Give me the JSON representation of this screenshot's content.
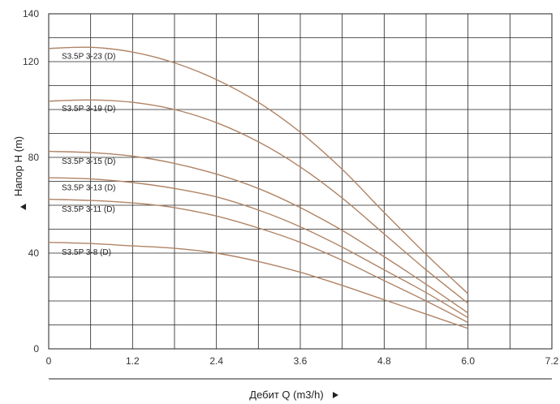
{
  "chart_data": {
    "type": "line",
    "title": "",
    "xlabel": "Дебит Q (m3/h)",
    "ylabel": "Напор H (m)",
    "xlim": [
      0,
      7.2
    ],
    "ylim": [
      0,
      140
    ],
    "x_ticks": [
      "0",
      "1.2",
      "2.4",
      "3.6",
      "4.8",
      "6.0",
      "7.2"
    ],
    "y_ticks": [
      "0",
      "40",
      "80",
      "120",
      "140"
    ],
    "grid": true,
    "series_color": "#b08466",
    "series": [
      {
        "name": "S3.5P 3-23 (D)",
        "x": [
          0,
          0.6,
          1.2,
          1.8,
          2.4,
          3.0,
          3.6,
          4.2,
          4.8,
          5.4,
          6.0
        ],
        "y": [
          125.5,
          126,
          124,
          119.5,
          112.5,
          103,
          90.5,
          75,
          57,
          39.5,
          23
        ]
      },
      {
        "name": "S3.5P 3-19 (D)",
        "x": [
          0,
          0.6,
          1.2,
          1.8,
          2.4,
          3.0,
          3.6,
          4.2,
          4.8,
          5.4,
          6.0
        ],
        "y": [
          103.5,
          104,
          103,
          100,
          94.5,
          86.5,
          76,
          63,
          48,
          33,
          19
        ]
      },
      {
        "name": "S3.5P 3-15 (D)",
        "x": [
          0,
          0.6,
          1.2,
          1.8,
          2.4,
          3.0,
          3.6,
          4.2,
          4.8,
          5.4,
          6.0
        ],
        "y": [
          82.5,
          82,
          80.5,
          77.5,
          73,
          67,
          59,
          49.5,
          38.5,
          27,
          15
        ]
      },
      {
        "name": "S3.5P 3-13 (D)",
        "x": [
          0,
          0.6,
          1.2,
          1.8,
          2.4,
          3.0,
          3.6,
          4.2,
          4.8,
          5.4,
          6.0
        ],
        "y": [
          71.5,
          71,
          69.5,
          67,
          63.5,
          58,
          51,
          42.5,
          33,
          23.5,
          13
        ]
      },
      {
        "name": "S3.5P 3-11 (D)",
        "x": [
          0,
          0.6,
          1.2,
          1.8,
          2.4,
          3.0,
          3.6,
          4.2,
          4.8,
          5.4,
          6.0
        ],
        "y": [
          62.5,
          62,
          61,
          59,
          55.5,
          50.5,
          44.5,
          37,
          28.5,
          20,
          11
        ]
      },
      {
        "name": "S3.5P 3-8 (D)",
        "x": [
          0,
          0.6,
          1.2,
          1.8,
          2.4,
          3.0,
          3.6,
          4.2,
          4.8,
          5.4,
          6.0
        ],
        "y": [
          44.5,
          44,
          43,
          42,
          40,
          36.5,
          32,
          26.5,
          20.5,
          14.5,
          8.5
        ]
      }
    ]
  }
}
